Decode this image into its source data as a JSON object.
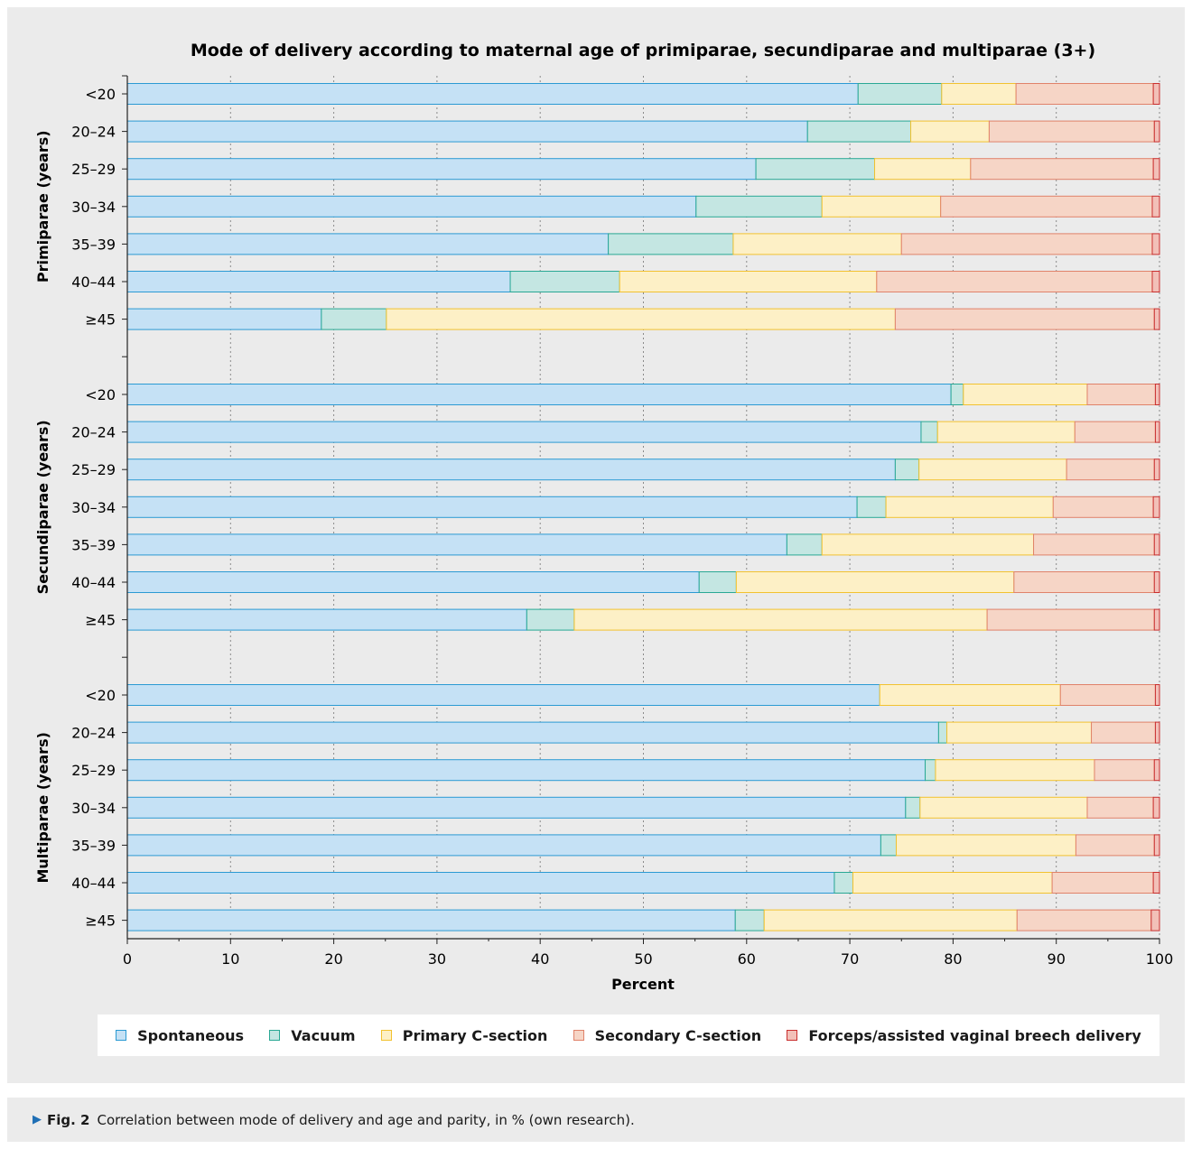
{
  "figure_caption": {
    "label": "Fig. 2",
    "text": "Correlation between mode of delivery and age and parity, in % (own research)."
  },
  "colors": {
    "spontaneous_fill": "#c5e1f5",
    "spontaneous_stroke": "#2b9ad3",
    "vacuum_fill": "#c4e6e2",
    "vacuum_stroke": "#2aa894",
    "primary_fill": "#fdf0c6",
    "primary_stroke": "#f2c230",
    "secondary_fill": "#f6d5c6",
    "secondary_stroke": "#e0826a",
    "forceps_fill": "#f2c0b8",
    "forceps_stroke": "#c92f2f"
  },
  "legend_placement": "bottom",
  "chart_data": {
    "type": "bar",
    "orientation": "horizontal",
    "stacked": true,
    "title": "Mode of delivery according to maternal age of primiparae, secundiparae and multiparae (3+)",
    "xlabel": "Percent",
    "xlim": [
      0,
      100
    ],
    "xticks": [
      "0",
      "10",
      "20",
      "30",
      "40",
      "50",
      "60",
      "70",
      "80",
      "90",
      "100"
    ],
    "grid": "vertical dotted",
    "series_names": [
      "Spontaneous",
      "Vacuum",
      "Primary C-section",
      "Secondary C-section",
      "Forceps/assisted vaginal breech delivery"
    ],
    "groups": [
      {
        "label": "Primiparae (years)",
        "categories": [
          "<20",
          "20–24",
          "25–29",
          "30–34",
          "35–39",
          "40–44",
          "≥45"
        ],
        "values": [
          [
            70.8,
            8.1,
            7.2,
            13.3,
            0.6
          ],
          [
            65.9,
            10.0,
            7.6,
            16.0,
            0.5
          ],
          [
            60.9,
            11.5,
            9.3,
            17.7,
            0.6
          ],
          [
            55.1,
            12.2,
            11.5,
            20.5,
            0.7
          ],
          [
            46.6,
            12.1,
            16.3,
            24.3,
            0.7
          ],
          [
            37.1,
            10.6,
            24.9,
            26.7,
            0.7
          ],
          [
            18.8,
            6.3,
            49.3,
            25.1,
            0.5
          ]
        ]
      },
      {
        "label": "Secundiparae (years)",
        "categories": [
          "<20",
          "20–24",
          "25–29",
          "30–34",
          "35–39",
          "40–44",
          "≥45"
        ],
        "values": [
          [
            79.8,
            1.2,
            12.0,
            6.6,
            0.4
          ],
          [
            76.9,
            1.6,
            13.3,
            7.8,
            0.4
          ],
          [
            74.4,
            2.3,
            14.3,
            8.5,
            0.5
          ],
          [
            70.7,
            2.8,
            16.2,
            9.7,
            0.6
          ],
          [
            63.9,
            3.4,
            20.5,
            11.7,
            0.5
          ],
          [
            55.4,
            3.6,
            26.9,
            13.6,
            0.5
          ],
          [
            38.7,
            4.6,
            40.0,
            16.2,
            0.5
          ]
        ]
      },
      {
        "label": "Multiparae (years)",
        "categories": [
          "<20",
          "20–24",
          "25–29",
          "30–34",
          "35–39",
          "40–44",
          "≥45"
        ],
        "values": [
          [
            72.9,
            0.0,
            17.5,
            9.2,
            0.4
          ],
          [
            78.6,
            0.8,
            14.0,
            6.2,
            0.4
          ],
          [
            77.3,
            1.0,
            15.4,
            5.8,
            0.5
          ],
          [
            75.4,
            1.4,
            16.2,
            6.4,
            0.6
          ],
          [
            73.0,
            1.5,
            17.4,
            7.6,
            0.5
          ],
          [
            68.5,
            1.8,
            19.3,
            9.8,
            0.6
          ],
          [
            58.9,
            2.8,
            24.5,
            13.0,
            0.8
          ]
        ]
      }
    ]
  }
}
